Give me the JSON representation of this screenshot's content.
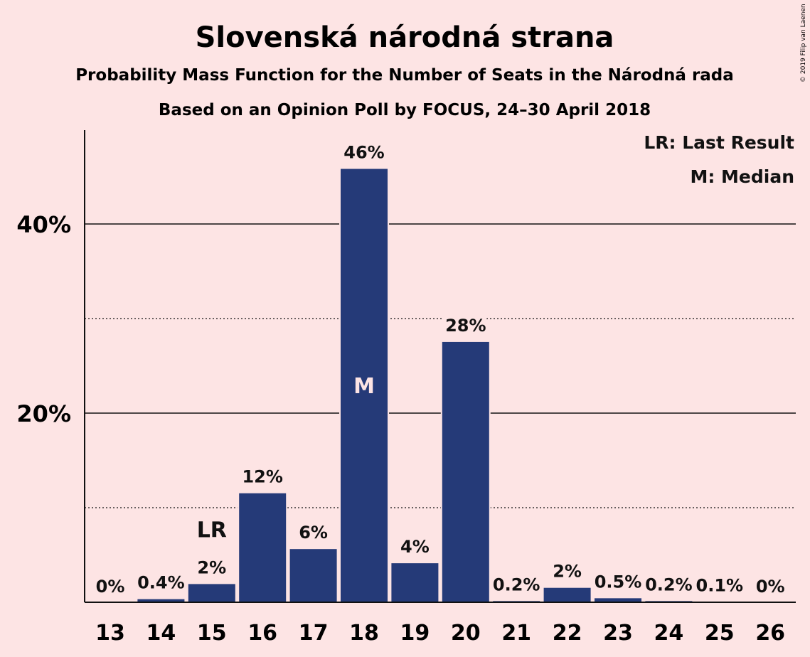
{
  "copyright": "© 2019 Filip van Laenen",
  "colors": {
    "background": "#fde4e4",
    "bar": "#253a78",
    "text": "#111111"
  },
  "chart_data": {
    "type": "bar",
    "title": "Slovenská národná strana",
    "subtitle": "Probability Mass Function for the Number of Seats in the Národná rada",
    "subtitle2": "Based on an Opinion Poll by FOCUS, 24–30 April 2018",
    "categories": [
      "13",
      "14",
      "15",
      "16",
      "17",
      "18",
      "19",
      "20",
      "21",
      "22",
      "23",
      "24",
      "25",
      "26"
    ],
    "values": [
      0,
      0.4,
      2.0,
      11.6,
      5.7,
      45.9,
      4.2,
      27.6,
      0.2,
      1.6,
      0.5,
      0.2,
      0.1,
      0
    ],
    "data_labels": [
      "0%",
      "0.4%",
      "2%",
      "12%",
      "6%",
      "46%",
      "4%",
      "28%",
      "0.2%",
      "2%",
      "0.5%",
      "0.2%",
      "0.1%",
      "0%"
    ],
    "ylim": [
      0,
      50
    ],
    "yticks": [
      {
        "value": 20,
        "label": "20%"
      },
      {
        "value": 40,
        "label": "40%"
      }
    ],
    "minor_gridlines": [
      10,
      30
    ],
    "legend": {
      "position": "top-right",
      "entries": [
        "LR: Last Result",
        "M: Median"
      ]
    },
    "markers": [
      {
        "category": "15",
        "text": "LR",
        "placement": "above"
      },
      {
        "category": "18",
        "text": "M",
        "placement": "inside"
      }
    ]
  }
}
